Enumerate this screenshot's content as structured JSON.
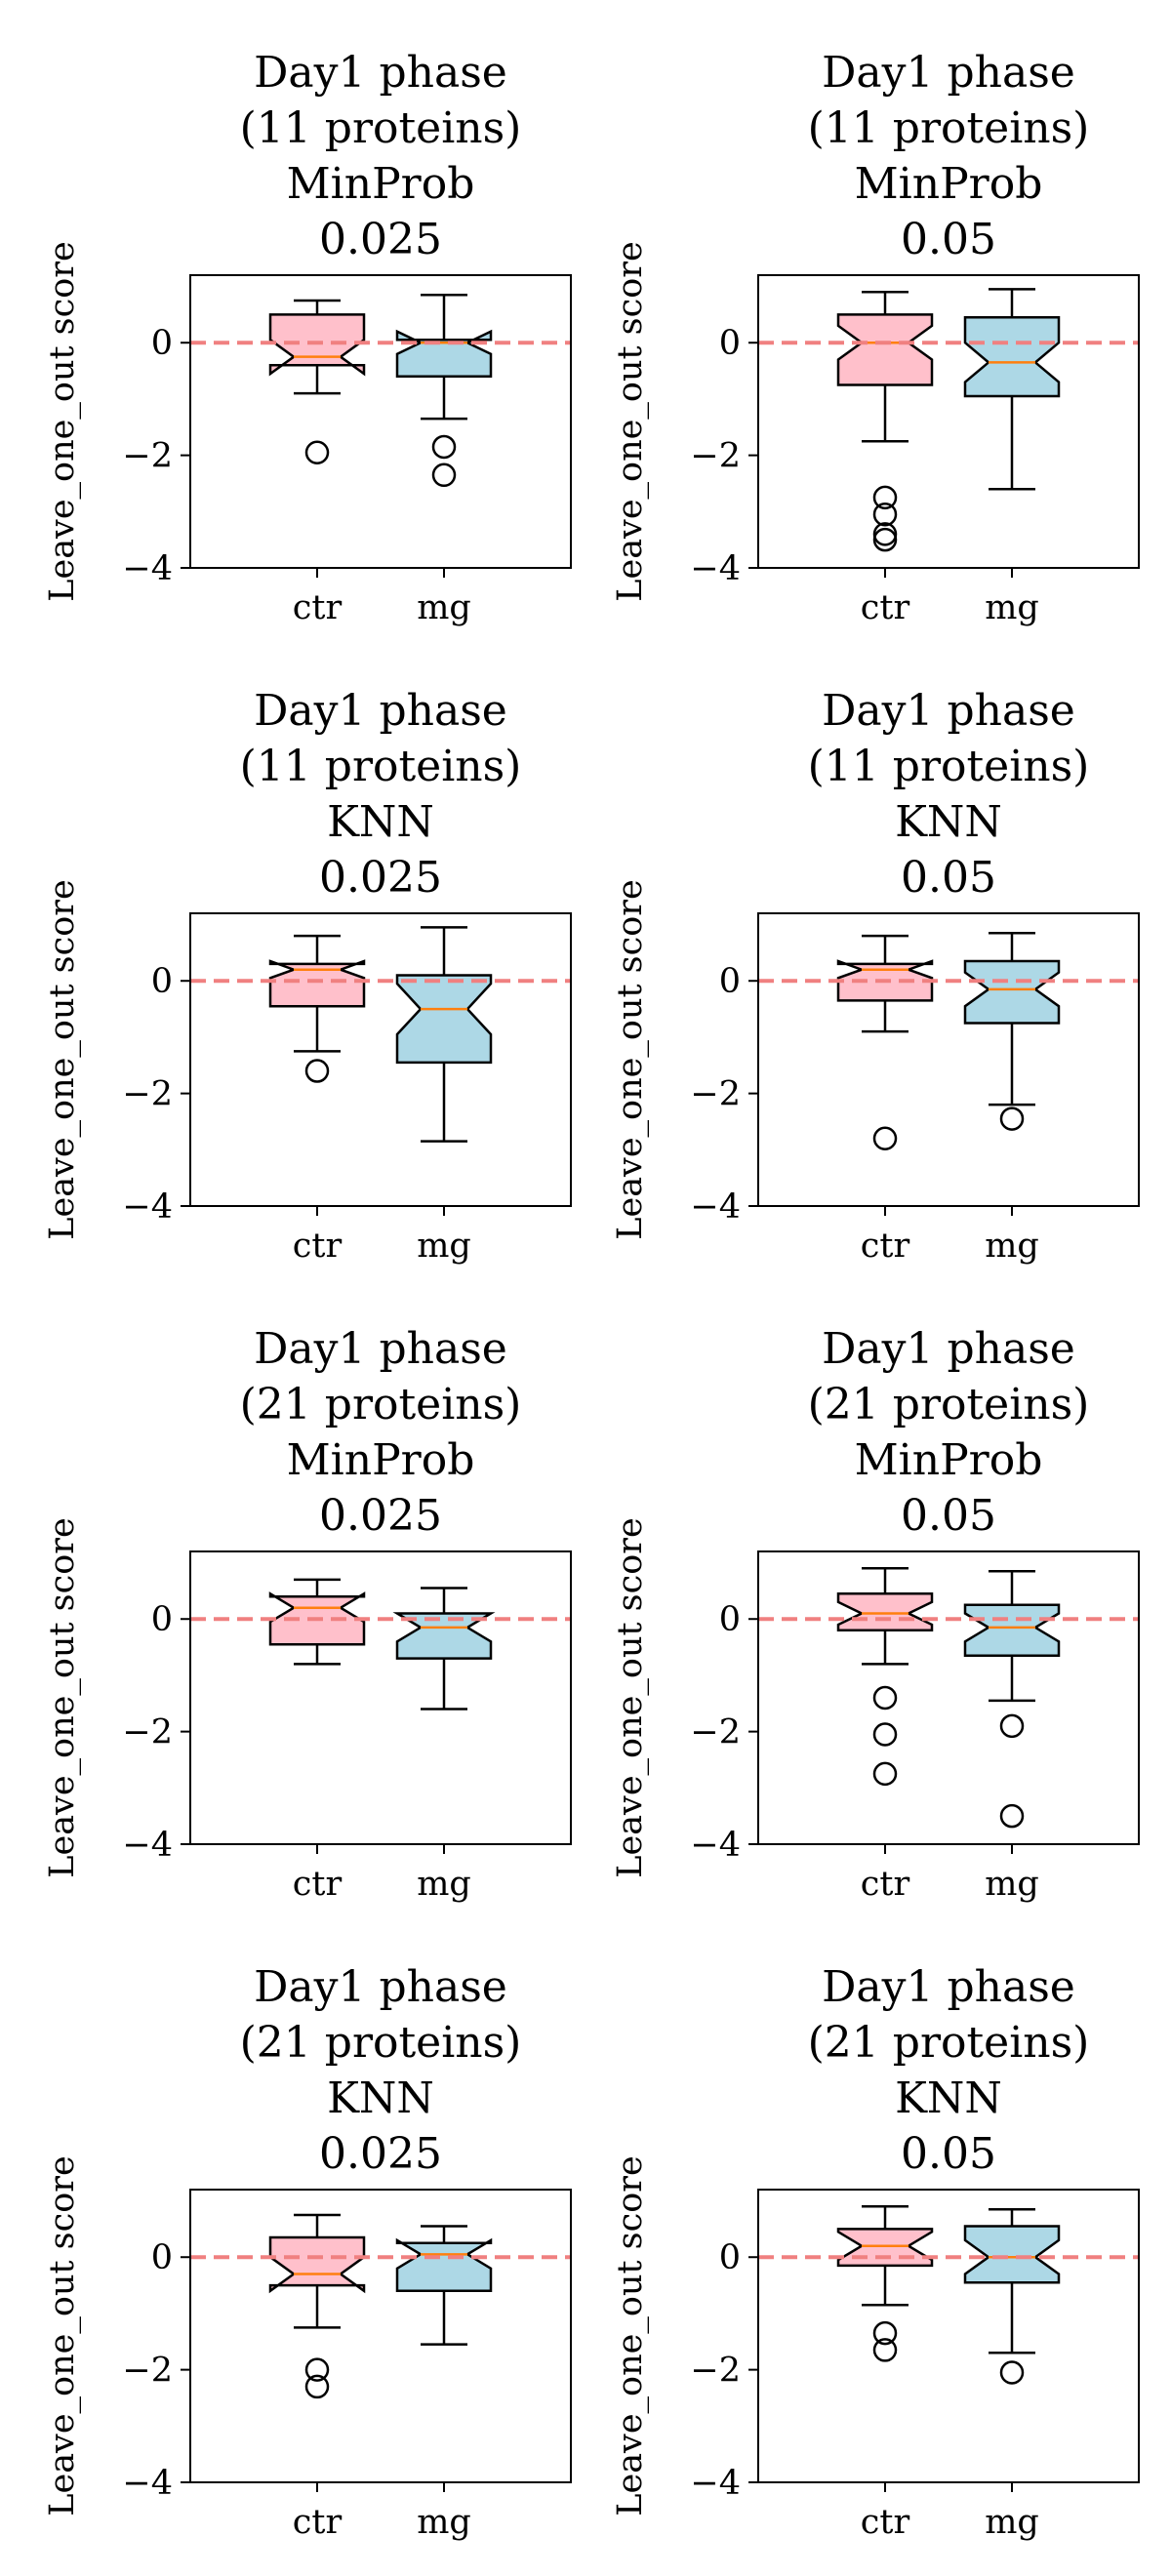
{
  "figure": {
    "background": "#ffffff",
    "ylabel": "Leave_one_out score",
    "ylim": [
      -4,
      1.2
    ],
    "yticks": [
      0,
      -2,
      -4
    ],
    "ytick_labels": [
      "0",
      "−2",
      "−4"
    ],
    "reference_line": {
      "y": 0,
      "color": "#f08080",
      "style": "dashed"
    },
    "colors": {
      "ctr": "#ffc0cb",
      "mg": "#add8e6",
      "median": "#ff7f0e",
      "outline": "#000000"
    }
  },
  "chart_data": [
    {
      "type": "box",
      "title_lines": [
        "Day1 phase",
        "(11 proteins)",
        "MinProb",
        "0.025"
      ],
      "ylabel": "Leave_one_out score",
      "categories": [
        "ctr",
        "mg"
      ],
      "notched": true,
      "boxes": [
        {
          "name": "ctr",
          "whisker_low": -0.9,
          "q1": -0.4,
          "median": -0.25,
          "q3": 0.5,
          "whisker_high": 0.75,
          "notch_low": -0.55,
          "notch_high": 0.05,
          "outliers": [
            -1.95
          ]
        },
        {
          "name": "mg",
          "whisker_low": -1.35,
          "q1": -0.6,
          "median": 0.0,
          "q3": 0.05,
          "whisker_high": 0.85,
          "notch_low": -0.2,
          "notch_high": 0.2,
          "outliers": [
            -1.85,
            -2.35
          ]
        }
      ]
    },
    {
      "type": "box",
      "title_lines": [
        "Day1 phase",
        "(11 proteins)",
        "MinProb",
        "0.05"
      ],
      "ylabel": "Leave_one_out score",
      "categories": [
        "ctr",
        "mg"
      ],
      "notched": true,
      "boxes": [
        {
          "name": "ctr",
          "whisker_low": -1.75,
          "q1": -0.75,
          "median": 0.0,
          "q3": 0.5,
          "whisker_high": 0.9,
          "notch_low": -0.3,
          "notch_high": 0.3,
          "outliers": [
            -2.75,
            -3.05,
            -3.4,
            -3.5
          ]
        },
        {
          "name": "mg",
          "whisker_low": -2.6,
          "q1": -0.95,
          "median": -0.35,
          "q3": 0.45,
          "whisker_high": 0.95,
          "notch_low": -0.7,
          "notch_high": 0.0,
          "outliers": []
        }
      ]
    },
    {
      "type": "box",
      "title_lines": [
        "Day1 phase",
        "(11 proteins)",
        "KNN",
        "0.025"
      ],
      "ylabel": "Leave_one_out score",
      "categories": [
        "ctr",
        "mg"
      ],
      "notched": true,
      "boxes": [
        {
          "name": "ctr",
          "whisker_low": -1.25,
          "q1": -0.45,
          "median": 0.2,
          "q3": 0.3,
          "whisker_high": 0.8,
          "notch_low": 0.05,
          "notch_high": 0.35,
          "outliers": [
            -1.6
          ]
        },
        {
          "name": "mg",
          "whisker_low": -2.85,
          "q1": -1.45,
          "median": -0.5,
          "q3": 0.1,
          "whisker_high": 0.95,
          "notch_low": -0.95,
          "notch_high": -0.05,
          "outliers": []
        }
      ]
    },
    {
      "type": "box",
      "title_lines": [
        "Day1 phase",
        "(11 proteins)",
        "KNN",
        "0.05"
      ],
      "ylabel": "Leave_one_out score",
      "categories": [
        "ctr",
        "mg"
      ],
      "notched": true,
      "boxes": [
        {
          "name": "ctr",
          "whisker_low": -0.9,
          "q1": -0.35,
          "median": 0.2,
          "q3": 0.3,
          "whisker_high": 0.8,
          "notch_low": 0.05,
          "notch_high": 0.35,
          "outliers": [
            -2.8
          ]
        },
        {
          "name": "mg",
          "whisker_low": -2.2,
          "q1": -0.75,
          "median": -0.15,
          "q3": 0.35,
          "whisker_high": 0.85,
          "notch_low": -0.45,
          "notch_high": 0.15,
          "outliers": [
            -2.45
          ]
        }
      ]
    },
    {
      "type": "box",
      "title_lines": [
        "Day1 phase",
        "(21 proteins)",
        "MinProb",
        "0.025"
      ],
      "ylabel": "Leave_one_out score",
      "categories": [
        "ctr",
        "mg"
      ],
      "notched": true,
      "boxes": [
        {
          "name": "ctr",
          "whisker_low": -0.8,
          "q1": -0.45,
          "median": 0.2,
          "q3": 0.4,
          "whisker_high": 0.7,
          "notch_low": -0.05,
          "notch_high": 0.45,
          "outliers": []
        },
        {
          "name": "mg",
          "whisker_low": -1.6,
          "q1": -0.7,
          "median": -0.15,
          "q3": 0.1,
          "whisker_high": 0.55,
          "notch_low": -0.4,
          "notch_high": 0.1,
          "outliers": []
        }
      ]
    },
    {
      "type": "box",
      "title_lines": [
        "Day1 phase",
        "(21 proteins)",
        "MinProb",
        "0.05"
      ],
      "ylabel": "Leave_one_out score",
      "categories": [
        "ctr",
        "mg"
      ],
      "notched": true,
      "boxes": [
        {
          "name": "ctr",
          "whisker_low": -0.8,
          "q1": -0.2,
          "median": 0.1,
          "q3": 0.45,
          "whisker_high": 0.9,
          "notch_low": -0.1,
          "notch_high": 0.3,
          "outliers": [
            -1.4,
            -2.05,
            -2.75
          ]
        },
        {
          "name": "mg",
          "whisker_low": -1.45,
          "q1": -0.65,
          "median": -0.15,
          "q3": 0.25,
          "whisker_high": 0.85,
          "notch_low": -0.4,
          "notch_high": 0.1,
          "outliers": [
            -1.9,
            -3.5
          ]
        }
      ]
    },
    {
      "type": "box",
      "title_lines": [
        "Day1 phase",
        "(21 proteins)",
        "KNN",
        "0.025"
      ],
      "ylabel": "Leave_one_out score",
      "categories": [
        "ctr",
        "mg"
      ],
      "notched": true,
      "boxes": [
        {
          "name": "ctr",
          "whisker_low": -1.25,
          "q1": -0.5,
          "median": -0.3,
          "q3": 0.35,
          "whisker_high": 0.75,
          "notch_low": -0.6,
          "notch_high": 0.0,
          "outliers": [
            -2.0,
            -2.3
          ]
        },
        {
          "name": "mg",
          "whisker_low": -1.55,
          "q1": -0.6,
          "median": 0.05,
          "q3": 0.25,
          "whisker_high": 0.55,
          "notch_low": -0.2,
          "notch_high": 0.3,
          "outliers": []
        }
      ]
    },
    {
      "type": "box",
      "title_lines": [
        "Day1 phase",
        "(21 proteins)",
        "KNN",
        "0.05"
      ],
      "ylabel": "Leave_one_out score",
      "categories": [
        "ctr",
        "mg"
      ],
      "notched": true,
      "boxes": [
        {
          "name": "ctr",
          "whisker_low": -0.85,
          "q1": -0.15,
          "median": 0.2,
          "q3": 0.5,
          "whisker_high": 0.9,
          "notch_low": -0.05,
          "notch_high": 0.45,
          "outliers": [
            -1.35,
            -1.65
          ]
        },
        {
          "name": "mg",
          "whisker_low": -1.7,
          "q1": -0.45,
          "median": 0.0,
          "q3": 0.55,
          "whisker_high": 0.85,
          "notch_low": -0.3,
          "notch_high": 0.3,
          "outliers": [
            -2.05
          ]
        }
      ]
    }
  ]
}
